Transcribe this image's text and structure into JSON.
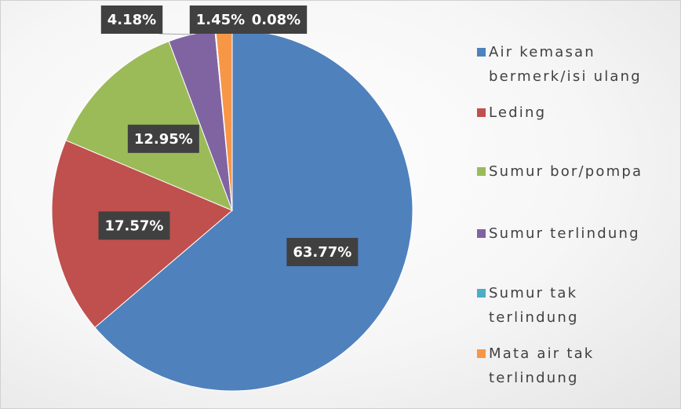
{
  "chart_data": {
    "type": "pie",
    "categories": [
      "Air kemasan bermerk/isi ulang",
      "Leding",
      "Sumur bor/pompa",
      "Sumur terlindung",
      "Sumur tak terlindung",
      "Mata air tak terlindung"
    ],
    "values": [
      63.77,
      17.57,
      12.95,
      4.18,
      0.08,
      1.45
    ],
    "value_labels": [
      "63.77%",
      "17.57%",
      "12.95%",
      "4.18%",
      "0.08%",
      "1.45%"
    ],
    "colors": [
      "#4f81bd",
      "#c0504d",
      "#9bbb59",
      "#8064a2",
      "#4bacc6",
      "#f79646"
    ],
    "legend": "right"
  }
}
